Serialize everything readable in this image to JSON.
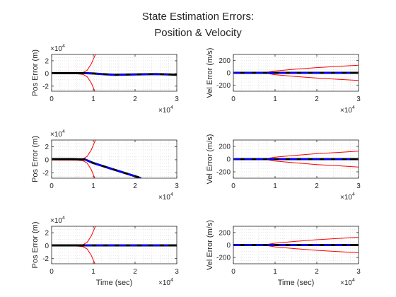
{
  "figure": {
    "title_line1": "State Estimation Errors:",
    "title_line2": "Position & Velocity",
    "x_exponent_base": "×10",
    "x_exponent_power": "4",
    "y_exponent_base": "×10",
    "y_exponent_power": "4"
  },
  "colors": {
    "error": "#000000",
    "filter": "#0000ff",
    "bound": "#ff0000",
    "grid": "#d9d9d9",
    "axis": "#262626"
  },
  "chart_data": [
    {
      "type": "line",
      "row": 1,
      "col": 1,
      "ylabel": "Pos Error (m)",
      "xlabel": "",
      "xlim": [
        0,
        3
      ],
      "ylim": [
        -2.8,
        3
      ],
      "x_ticks": [
        0,
        1,
        2,
        3
      ],
      "y_ticks": [
        -2,
        0,
        2
      ],
      "x_scale_note": "x 10^4",
      "y_scale_note": "x 10^4",
      "grid": "minor",
      "bound_type": "divergent",
      "series": [
        {
          "role": "error",
          "x": [
            0,
            0.5,
            0.8,
            1.0,
            1.2,
            1.5,
            2.0,
            2.5,
            2.8,
            3.0
          ],
          "y": [
            0.05,
            0.05,
            0.05,
            0.0,
            -0.1,
            -0.2,
            -0.15,
            -0.1,
            -0.15,
            -0.2
          ]
        },
        {
          "role": "filter",
          "x": [
            0.8,
            1.0,
            1.2,
            1.5,
            2.0,
            2.5,
            2.8
          ],
          "y": [
            0.05,
            0.0,
            -0.1,
            -0.2,
            -0.15,
            -0.1,
            -0.15
          ]
        },
        {
          "role": "bound_upper",
          "x": [
            0,
            0.6,
            0.75,
            0.85,
            0.95,
            1.05
          ],
          "y": [
            0.05,
            0.06,
            0.15,
            0.5,
            1.5,
            3.0
          ]
        },
        {
          "role": "bound_lower",
          "x": [
            0,
            0.6,
            0.75,
            0.85,
            0.95,
            1.05
          ],
          "y": [
            -0.05,
            -0.06,
            -0.15,
            -0.5,
            -1.5,
            -3.0
          ]
        }
      ]
    },
    {
      "type": "line",
      "row": 1,
      "col": 2,
      "ylabel": "Vel Error (m/s)",
      "xlabel": "",
      "xlim": [
        0,
        3
      ],
      "ylim": [
        -300,
        300
      ],
      "x_ticks": [
        0,
        1,
        2,
        3
      ],
      "y_ticks": [
        -200,
        0,
        200
      ],
      "x_scale_note": "x 10^4",
      "grid": "minor",
      "bound_type": "growing",
      "series": [
        {
          "role": "error",
          "x": [
            0,
            1.0,
            1.5,
            2.0,
            2.5,
            3.0
          ],
          "y": [
            0,
            0,
            0,
            0,
            0,
            0
          ]
        },
        {
          "role": "filter",
          "x": [
            0,
            2.8
          ],
          "y": [
            0,
            0
          ]
        },
        {
          "role": "bound_upper",
          "x": [
            0,
            0.5,
            0.8,
            1.0,
            1.5,
            2.0,
            2.5,
            3.0
          ],
          "y": [
            5,
            5,
            8,
            30,
            60,
            85,
            105,
            125
          ]
        },
        {
          "role": "bound_lower",
          "x": [
            0,
            0.5,
            0.8,
            1.0,
            1.5,
            2.0,
            2.5,
            3.0
          ],
          "y": [
            -5,
            -5,
            -8,
            -30,
            -60,
            -85,
            -105,
            -125
          ]
        }
      ]
    },
    {
      "type": "line",
      "row": 2,
      "col": 1,
      "ylabel": "Pos Error (m)",
      "xlabel": "",
      "xlim": [
        0,
        3
      ],
      "ylim": [
        -2.8,
        3
      ],
      "x_ticks": [
        0,
        1,
        2,
        3
      ],
      "y_ticks": [
        -2,
        0,
        2
      ],
      "x_scale_note": "x 10^4",
      "y_scale_note": "x 10^4",
      "grid": "minor",
      "bound_type": "divergent",
      "series": [
        {
          "role": "error",
          "x": [
            0,
            0.5,
            0.8,
            1.0,
            1.5,
            2.0,
            2.1
          ],
          "y": [
            0.1,
            0.1,
            0.05,
            -0.5,
            -1.5,
            -2.5,
            -2.7
          ]
        },
        {
          "role": "filter",
          "x": [
            0.8,
            1.0,
            1.5,
            2.0,
            2.15
          ],
          "y": [
            0.05,
            -0.5,
            -1.5,
            -2.5,
            -2.8
          ]
        },
        {
          "role": "bound_upper",
          "x": [
            0,
            0.6,
            0.75,
            0.85,
            0.95,
            1.05
          ],
          "y": [
            0.05,
            0.06,
            0.15,
            0.5,
            1.5,
            3.0
          ]
        },
        {
          "role": "bound_lower",
          "x": [
            0,
            0.6,
            0.75,
            0.85,
            0.95,
            1.05
          ],
          "y": [
            -0.05,
            -0.06,
            -0.15,
            -0.5,
            -1.5,
            -3.0
          ]
        }
      ]
    },
    {
      "type": "line",
      "row": 2,
      "col": 2,
      "ylabel": "Vel Error (m/s)",
      "xlabel": "",
      "xlim": [
        0,
        3
      ],
      "ylim": [
        -300,
        300
      ],
      "x_ticks": [
        0,
        1,
        2,
        3
      ],
      "y_ticks": [
        -200,
        0,
        200
      ],
      "x_scale_note": "x 10^4",
      "grid": "minor",
      "bound_type": "growing",
      "series": [
        {
          "role": "error",
          "x": [
            0,
            1.0,
            1.5,
            2.0,
            2.5,
            3.0
          ],
          "y": [
            0,
            0,
            0,
            0,
            0,
            0
          ]
        },
        {
          "role": "filter",
          "x": [
            0,
            2.8
          ],
          "y": [
            0,
            0
          ]
        },
        {
          "role": "bound_upper",
          "x": [
            0,
            0.5,
            0.8,
            1.0,
            1.5,
            2.0,
            2.5,
            3.0
          ],
          "y": [
            5,
            5,
            8,
            30,
            60,
            85,
            105,
            125
          ]
        },
        {
          "role": "bound_lower",
          "x": [
            0,
            0.5,
            0.8,
            1.0,
            1.5,
            2.0,
            2.5,
            3.0
          ],
          "y": [
            -5,
            -5,
            -8,
            -30,
            -60,
            -85,
            -105,
            -125
          ]
        }
      ]
    },
    {
      "type": "line",
      "row": 3,
      "col": 1,
      "ylabel": "Pos Error (m)",
      "xlabel": "Time (sec)",
      "xlim": [
        0,
        3
      ],
      "ylim": [
        -2.8,
        3
      ],
      "x_ticks": [
        0,
        1,
        2,
        3
      ],
      "y_ticks": [
        -2,
        0,
        2
      ],
      "x_scale_note": "x 10^4",
      "y_scale_note": "x 10^4",
      "grid": "minor",
      "bound_type": "divergent",
      "series": [
        {
          "role": "error",
          "x": [
            0,
            0.5,
            1.0,
            1.5,
            2.0,
            2.5,
            3.0
          ],
          "y": [
            0.05,
            0.05,
            0.05,
            0.05,
            0.05,
            0.05,
            0.05
          ]
        },
        {
          "role": "filter",
          "x": [
            0.8,
            2.8
          ],
          "y": [
            0.05,
            0.05
          ]
        },
        {
          "role": "bound_upper",
          "x": [
            0,
            0.6,
            0.75,
            0.85,
            0.95,
            1.05
          ],
          "y": [
            0.05,
            0.06,
            0.15,
            0.5,
            1.5,
            3.0
          ]
        },
        {
          "role": "bound_lower",
          "x": [
            0,
            0.6,
            0.75,
            0.85,
            0.95,
            1.05
          ],
          "y": [
            -0.05,
            -0.06,
            -0.15,
            -0.5,
            -1.5,
            -3.0
          ]
        }
      ]
    },
    {
      "type": "line",
      "row": 3,
      "col": 2,
      "ylabel": "Vel Error (m/s)",
      "xlabel": "Time (sec)",
      "xlim": [
        0,
        3
      ],
      "ylim": [
        -300,
        300
      ],
      "x_ticks": [
        0,
        1,
        2,
        3
      ],
      "y_ticks": [
        -200,
        0,
        200
      ],
      "x_scale_note": "x 10^4",
      "grid": "minor",
      "bound_type": "growing",
      "series": [
        {
          "role": "error",
          "x": [
            0,
            1.0,
            1.5,
            2.0,
            2.5,
            3.0
          ],
          "y": [
            0,
            0,
            0,
            0,
            0,
            0
          ]
        },
        {
          "role": "filter",
          "x": [
            0,
            2.8
          ],
          "y": [
            0,
            0
          ]
        },
        {
          "role": "bound_upper",
          "x": [
            0,
            0.5,
            0.8,
            1.0,
            1.5,
            2.0,
            2.5,
            3.0
          ],
          "y": [
            5,
            5,
            8,
            30,
            60,
            85,
            105,
            125
          ]
        },
        {
          "role": "bound_lower",
          "x": [
            0,
            0.5,
            0.8,
            1.0,
            1.5,
            2.0,
            2.5,
            3.0
          ],
          "y": [
            -5,
            -5,
            -8,
            -30,
            -60,
            -85,
            -105,
            -125
          ]
        }
      ]
    }
  ]
}
